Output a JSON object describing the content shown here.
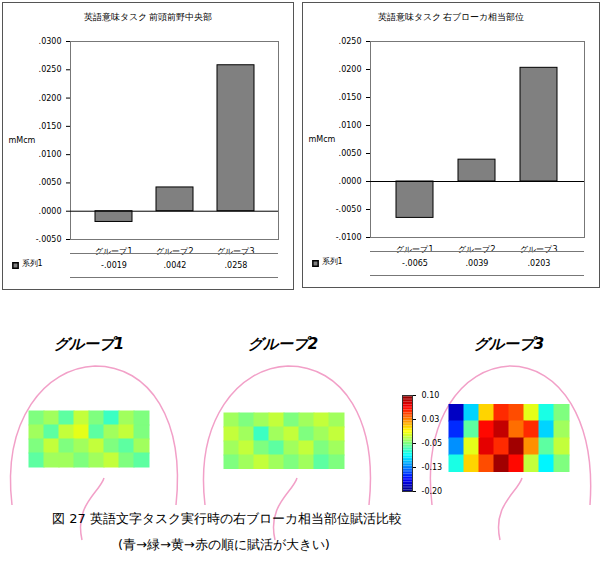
{
  "chart_data": [
    {
      "type": "bar",
      "title": "英語意味タスク 前頭前野中央部",
      "y_label": "mMcm",
      "categories": [
        "グループ1",
        "グループ2",
        "グループ3"
      ],
      "series": [
        {
          "name": "系列1",
          "color": "#808080",
          "values": [
            -0.0019,
            0.0042,
            0.0258
          ],
          "value_labels": [
            "-.0019",
            ".0042",
            ".0258"
          ]
        }
      ],
      "ylim": [
        -0.005,
        0.03
      ],
      "yticks": [
        {
          "value": -0.005,
          "label": "-.0050"
        },
        {
          "value": 0,
          "label": ".0000"
        },
        {
          "value": 0.005,
          "label": ".0050"
        },
        {
          "value": 0.01,
          "label": ".0100"
        },
        {
          "value": 0.015,
          "label": ".0150"
        },
        {
          "value": 0.02,
          "label": ".0200"
        },
        {
          "value": 0.025,
          "label": ".0250"
        },
        {
          "value": 0.03,
          "label": ".0300"
        }
      ],
      "grid": false
    },
    {
      "type": "bar",
      "title": "英語意味タスク 右ブローカ相当部位",
      "y_label": "mMcm",
      "categories": [
        "グループ1",
        "グループ2",
        "グループ3"
      ],
      "series": [
        {
          "name": "系列1",
          "color": "#808080",
          "values": [
            -0.0065,
            0.0039,
            0.0203
          ],
          "value_labels": [
            "-.0065",
            ".0039",
            ".0203"
          ]
        }
      ],
      "ylim": [
        -0.01,
        0.025
      ],
      "yticks": [
        {
          "value": -0.01,
          "label": "-.0100"
        },
        {
          "value": -0.005,
          "label": "-.0050"
        },
        {
          "value": 0,
          "label": ".0000"
        },
        {
          "value": 0.005,
          "label": ".0050"
        },
        {
          "value": 0.01,
          "label": ".0100"
        },
        {
          "value": 0.015,
          "label": ".0150"
        },
        {
          "value": 0.02,
          "label": ".0200"
        },
        {
          "value": 0.025,
          "label": ".0250"
        }
      ],
      "grid": false
    },
    {
      "type": "heatmap",
      "title": "図 27 英語文字タスク実行時の右ブローカ相当部位賦活比較",
      "subtitle": "(青→緑→黄→赤の順に賦活が大きい)",
      "panels": [
        {
          "title": "グループ1",
          "cells": [
            [
              -0.05,
              -0.04,
              -0.06,
              -0.03,
              -0.05,
              -0.07,
              -0.04,
              -0.05
            ],
            [
              -0.04,
              -0.06,
              -0.03,
              -0.02,
              -0.06,
              -0.04,
              -0.03,
              -0.05
            ],
            [
              -0.05,
              -0.03,
              -0.05,
              -0.04,
              -0.03,
              -0.05,
              -0.06,
              -0.04
            ],
            [
              -0.06,
              -0.04,
              -0.04,
              -0.05,
              -0.04,
              -0.03,
              -0.05,
              -0.06
            ]
          ]
        },
        {
          "title": "グループ2",
          "cells": [
            [
              -0.04,
              -0.05,
              -0.04,
              -0.03,
              -0.05,
              -0.04,
              -0.03,
              -0.04
            ],
            [
              -0.03,
              -0.04,
              -0.07,
              -0.04,
              -0.03,
              -0.05,
              -0.04,
              -0.03
            ],
            [
              -0.04,
              -0.03,
              -0.05,
              -0.06,
              -0.04,
              -0.03,
              -0.05,
              -0.04
            ],
            [
              -0.05,
              -0.04,
              -0.03,
              -0.04,
              -0.05,
              -0.04,
              -0.06,
              -0.05
            ]
          ]
        },
        {
          "title": "グループ3",
          "cells": [
            [
              -0.18,
              -0.1,
              0.0,
              0.05,
              0.04,
              -0.02,
              -0.08,
              -0.05
            ],
            [
              -0.15,
              -0.06,
              0.06,
              0.08,
              0.03,
              0.05,
              -0.1,
              -0.04
            ],
            [
              -0.12,
              -0.02,
              0.07,
              0.05,
              0.09,
              0.02,
              -0.06,
              -0.03
            ],
            [
              -0.08,
              0.0,
              0.04,
              0.09,
              0.06,
              -0.03,
              -0.09,
              -0.05
            ]
          ]
        }
      ],
      "colorbar": {
        "range": [
          -0.2,
          0.1
        ],
        "ticks": [
          {
            "value": 0.1,
            "label": "0.10"
          },
          {
            "value": 0.025,
            "label": "0.03"
          },
          -0.05,
          {
            "value": -0.125,
            "label": "-0.13"
          },
          {
            "value": -0.2,
            "label": "-0.20"
          }
        ]
      }
    }
  ]
}
